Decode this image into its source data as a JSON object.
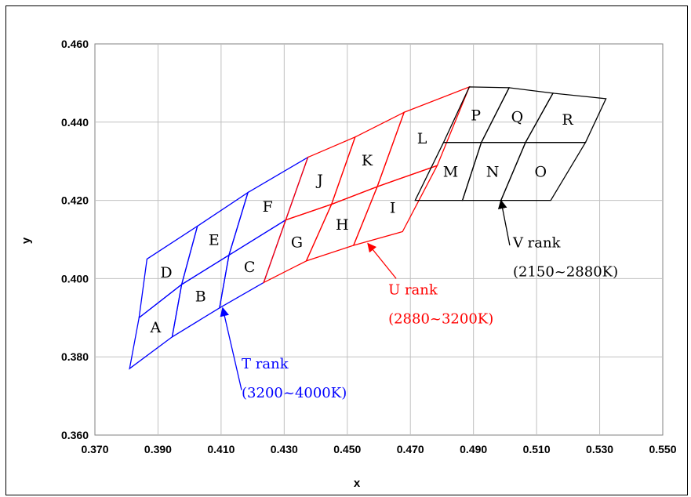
{
  "chart_data": {
    "type": "scatter",
    "title": "",
    "xlabel": "x",
    "ylabel": "y",
    "xlim": [
      0.37,
      0.55
    ],
    "ylim": [
      0.36,
      0.46
    ],
    "xticks": [
      "0.370",
      "0.390",
      "0.410",
      "0.430",
      "0.450",
      "0.470",
      "0.490",
      "0.510",
      "0.530",
      "0.550"
    ],
    "yticks": [
      "0.360",
      "0.380",
      "0.400",
      "0.420",
      "0.440",
      "0.460"
    ],
    "grid": true,
    "colors": {
      "T": "#0000ff",
      "U": "#ff0000",
      "V": "#000000"
    },
    "series": [
      {
        "key": "T",
        "regions": [
          {
            "label": "A",
            "corners": [
              [
                0.381,
                0.377
              ],
              [
                0.3945,
                0.3851
              ],
              [
                0.3975,
                0.3985
              ],
              [
                0.384,
                0.39
              ]
            ]
          },
          {
            "label": "B",
            "corners": [
              [
                0.3945,
                0.3851
              ],
              [
                0.4095,
                0.3925
              ],
              [
                0.4125,
                0.406
              ],
              [
                0.3975,
                0.3985
              ]
            ]
          },
          {
            "label": "C",
            "corners": [
              [
                0.4095,
                0.3925
              ],
              [
                0.4235,
                0.399
              ],
              [
                0.4305,
                0.415
              ],
              [
                0.4125,
                0.406
              ]
            ]
          },
          {
            "label": "D",
            "corners": [
              [
                0.384,
                0.39
              ],
              [
                0.3975,
                0.3985
              ],
              [
                0.4025,
                0.4134
              ],
              [
                0.3865,
                0.405
              ]
            ]
          },
          {
            "label": "E",
            "corners": [
              [
                0.3975,
                0.3985
              ],
              [
                0.4125,
                0.406
              ],
              [
                0.4185,
                0.422
              ],
              [
                0.4025,
                0.4134
              ]
            ]
          },
          {
            "label": "F",
            "corners": [
              [
                0.4125,
                0.406
              ],
              [
                0.4305,
                0.415
              ],
              [
                0.4375,
                0.431
              ],
              [
                0.4185,
                0.422
              ]
            ]
          }
        ]
      },
      {
        "key": "U",
        "regions": [
          {
            "label": "G",
            "corners": [
              [
                0.4235,
                0.399
              ],
              [
                0.437,
                0.4045
              ],
              [
                0.445,
                0.419
              ],
              [
                0.4305,
                0.415
              ]
            ]
          },
          {
            "label": "H",
            "corners": [
              [
                0.437,
                0.4045
              ],
              [
                0.452,
                0.4085
              ],
              [
                0.4595,
                0.4235
              ],
              [
                0.445,
                0.419
              ]
            ]
          },
          {
            "label": "I",
            "corners": [
              [
                0.452,
                0.4085
              ],
              [
                0.4675,
                0.412
              ],
              [
                0.4785,
                0.4289
              ],
              [
                0.4595,
                0.4235
              ]
            ]
          },
          {
            "label": "J",
            "corners": [
              [
                0.4305,
                0.415
              ],
              [
                0.445,
                0.419
              ],
              [
                0.4525,
                0.4362
              ],
              [
                0.4375,
                0.431
              ]
            ]
          },
          {
            "label": "K",
            "corners": [
              [
                0.445,
                0.419
              ],
              [
                0.4595,
                0.4235
              ],
              [
                0.468,
                0.4425
              ],
              [
                0.4525,
                0.4362
              ]
            ]
          },
          {
            "label": "L",
            "corners": [
              [
                0.4595,
                0.4235
              ],
              [
                0.4785,
                0.4289
              ],
              [
                0.4887,
                0.449
              ],
              [
                0.468,
                0.4425
              ]
            ]
          }
        ]
      },
      {
        "key": "V",
        "regions": [
          {
            "label": "M",
            "corners": [
              [
                0.4715,
                0.42
              ],
              [
                0.4865,
                0.42
              ],
              [
                0.4925,
                0.4348
              ],
              [
                0.4805,
                0.4348
              ]
            ]
          },
          {
            "label": "N",
            "corners": [
              [
                0.4865,
                0.42
              ],
              [
                0.4987,
                0.42
              ],
              [
                0.5065,
                0.4348
              ],
              [
                0.4925,
                0.4348
              ]
            ]
          },
          {
            "label": "O",
            "corners": [
              [
                0.4987,
                0.42
              ],
              [
                0.5145,
                0.42
              ],
              [
                0.5255,
                0.4348
              ],
              [
                0.5065,
                0.4348
              ]
            ]
          },
          {
            "label": "P",
            "corners": [
              [
                0.4805,
                0.4348
              ],
              [
                0.4925,
                0.4348
              ],
              [
                0.5013,
                0.4488
              ],
              [
                0.4887,
                0.449
              ]
            ]
          },
          {
            "label": "Q",
            "corners": [
              [
                0.4925,
                0.4348
              ],
              [
                0.5065,
                0.4348
              ],
              [
                0.5152,
                0.4474
              ],
              [
                0.5013,
                0.4488
              ]
            ]
          },
          {
            "label": "R",
            "corners": [
              [
                0.5065,
                0.4348
              ],
              [
                0.5255,
                0.4348
              ],
              [
                0.532,
                0.446
              ],
              [
                0.5152,
                0.4474
              ]
            ]
          }
        ]
      }
    ],
    "annotations": [
      {
        "key": "T",
        "color": "#0000ff",
        "line1": "T rank",
        "line2": "(3200~4000K)",
        "arrow_from": [
          0.4165,
          0.3715
        ],
        "arrow_to": [
          0.4105,
          0.3925
        ],
        "text_at": [
          0.4165,
          0.377
        ]
      },
      {
        "key": "U",
        "color": "#ff0000",
        "line1": "U rank",
        "line2": "(2880~3200K)",
        "arrow_from": [
          0.4655,
          0.4
        ],
        "arrow_to": [
          0.4565,
          0.409
        ],
        "text_at": [
          0.463,
          0.396
        ]
      },
      {
        "key": "V",
        "color": "#000000",
        "line1": "V rank",
        "line2": "(2150~2880K)",
        "arrow_from": [
          0.5015,
          0.4085
        ],
        "arrow_to": [
          0.4987,
          0.42
        ],
        "text_at": [
          0.5025,
          0.408
        ]
      }
    ]
  }
}
